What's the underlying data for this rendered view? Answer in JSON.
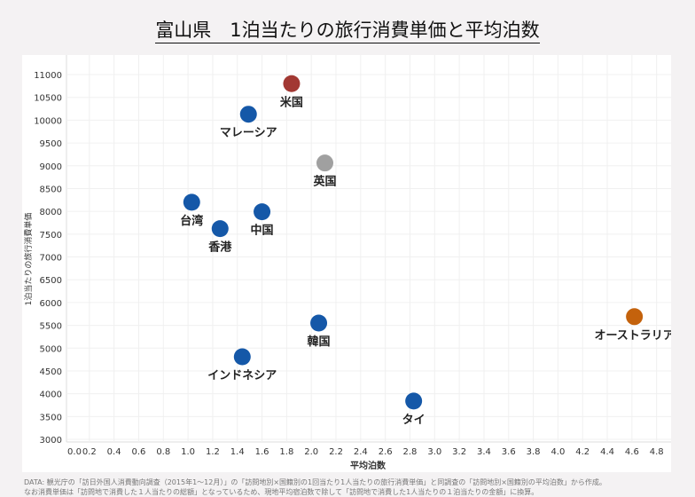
{
  "chart_data": {
    "type": "scatter",
    "title": "富山県　1泊当たりの旅行消費単価と平均泊数",
    "xlabel": "平均泊数",
    "ylabel": "1泊当たりの旅行消費単価",
    "xlim": [
      0,
      4.8
    ],
    "ylim": [
      3000,
      11000
    ],
    "xticks": [
      "0.0",
      "0.2",
      "0.4",
      "0.6",
      "0.8",
      "1.0",
      "1.2",
      "1.4",
      "1.6",
      "1.8",
      "2.0",
      "2.2",
      "2.4",
      "2.6",
      "2.8",
      "3.0",
      "3.2",
      "3.4",
      "3.6",
      "3.8",
      "4.0",
      "4.2",
      "4.4",
      "4.6",
      "4.8"
    ],
    "yticks": [
      "3000",
      "3500",
      "4000",
      "4500",
      "5000",
      "5500",
      "6000",
      "6500",
      "7000",
      "7500",
      "8000",
      "8500",
      "9000",
      "9500",
      "10000",
      "10500",
      "11000"
    ],
    "grid": true,
    "points": [
      {
        "label": "米国",
        "x": 1.84,
        "y": 10800,
        "color": "#a23833"
      },
      {
        "label": "マレーシア",
        "x": 1.49,
        "y": 10130,
        "color": "#1558a8"
      },
      {
        "label": "英国",
        "x": 2.11,
        "y": 9060,
        "color": "#a0a0a0"
      },
      {
        "label": "台湾",
        "x": 1.03,
        "y": 8200,
        "color": "#1558a8"
      },
      {
        "label": "中国",
        "x": 1.6,
        "y": 7990,
        "color": "#1558a8"
      },
      {
        "label": "香港",
        "x": 1.26,
        "y": 7620,
        "color": "#1558a8"
      },
      {
        "label": "オーストラリア",
        "x": 4.62,
        "y": 5690,
        "color": "#c4620c"
      },
      {
        "label": "韓国",
        "x": 2.06,
        "y": 5550,
        "color": "#1558a8"
      },
      {
        "label": "インドネシア",
        "x": 1.44,
        "y": 4810,
        "color": "#1558a8"
      },
      {
        "label": "タイ",
        "x": 2.83,
        "y": 3840,
        "color": "#1558a8"
      }
    ]
  },
  "notes": [
    "DATA: 観光庁の「訪日外国人消費動向調査（2015年1～12月）」の「訪問地別×国籍別の1回当たり1人当たりの旅行消費単価」と同調査の「訪問地別×国籍別の平均泊数」から作成。",
    "なお消費単価は「訪問地で消費した１人当たりの総額」となっているため、現地平均宿泊数で除して「訪問地で消費した1人当たりの１泊当たりの金額」に換算。"
  ]
}
